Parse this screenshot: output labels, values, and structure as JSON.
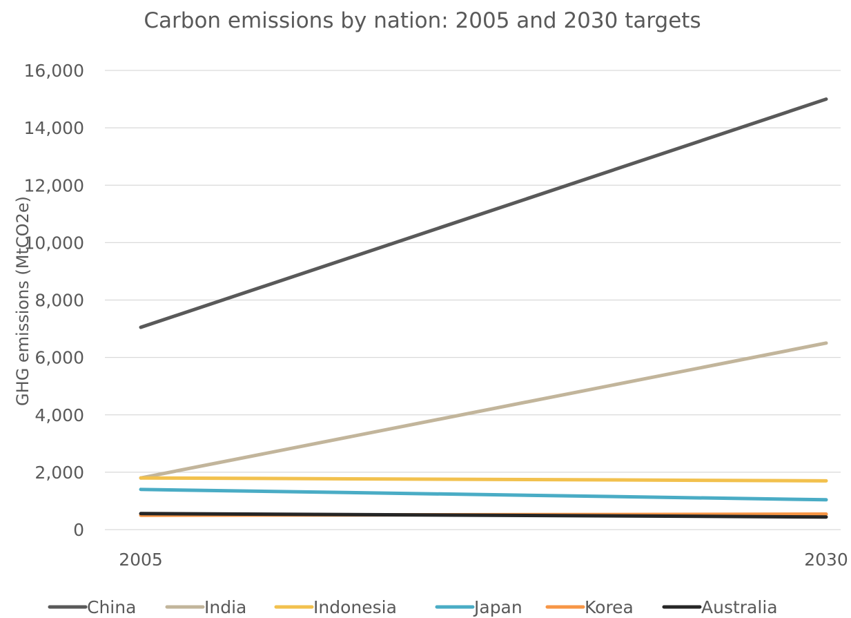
{
  "chart_data": {
    "type": "line",
    "title": "Carbon emissions by nation: 2005 and 2030 targets",
    "xlabel": "",
    "ylabel": "GHG emissions (MtCO2e)",
    "x": [
      "2005",
      "2030"
    ],
    "ylim": [
      0,
      16000
    ],
    "yticks": [
      "0",
      "2,000",
      "4,000",
      "6,000",
      "8,000",
      "10,000",
      "12,000",
      "14,000",
      "16,000"
    ],
    "grid": true,
    "legend_position": "bottom",
    "series": [
      {
        "name": "China",
        "color": "#595959",
        "values": [
          7050,
          15000
        ]
      },
      {
        "name": "India",
        "color": "#c2b59b",
        "values": [
          1800,
          6500
        ]
      },
      {
        "name": "Indonesia",
        "color": "#f2c14e",
        "values": [
          1800,
          1700
        ]
      },
      {
        "name": "Japan",
        "color": "#4aacc5",
        "values": [
          1400,
          1040
        ]
      },
      {
        "name": "Korea",
        "color": "#f79646",
        "values": [
          500,
          540
        ]
      },
      {
        "name": "Australia",
        "color": "#262626",
        "values": [
          560,
          440
        ]
      }
    ]
  }
}
